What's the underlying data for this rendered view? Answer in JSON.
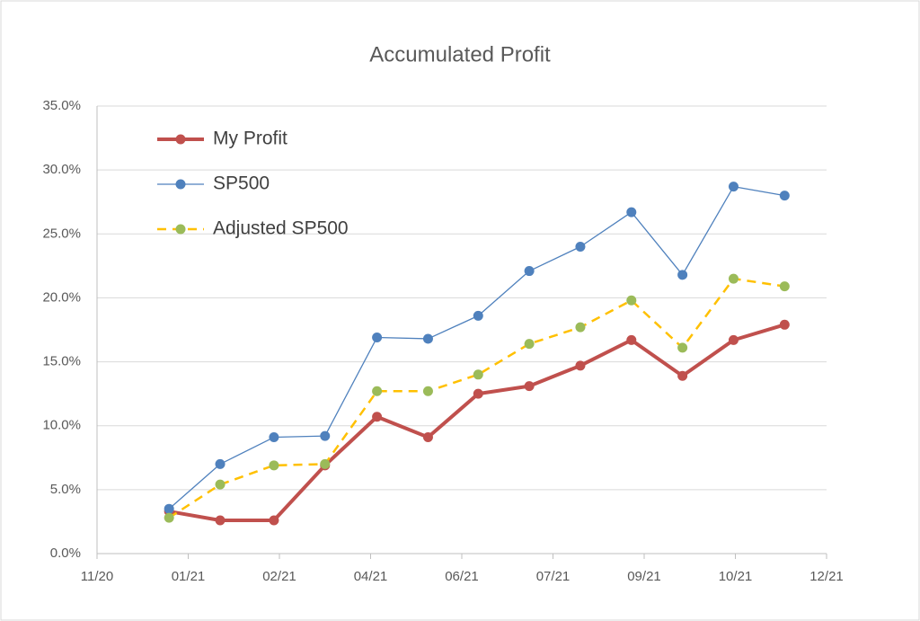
{
  "chart_data": {
    "type": "line",
    "title": "Accumulated Profit",
    "xlim": [
      0,
      8
    ],
    "xticks": [
      {
        "value": 0,
        "label": "11/20"
      },
      {
        "value": 1,
        "label": "01/21"
      },
      {
        "value": 2,
        "label": "02/21"
      },
      {
        "value": 3,
        "label": "04/21"
      },
      {
        "value": 4,
        "label": "06/21"
      },
      {
        "value": 5,
        "label": "07/21"
      },
      {
        "value": 6,
        "label": "09/21"
      },
      {
        "value": 7,
        "label": "10/21"
      },
      {
        "value": 8,
        "label": "12/21"
      }
    ],
    "ylim": [
      0,
      35
    ],
    "yticks": [
      {
        "value": 0,
        "label": "0.0%"
      },
      {
        "value": 5,
        "label": "5.0%"
      },
      {
        "value": 10,
        "label": "10.0%"
      },
      {
        "value": 15,
        "label": "15.0%"
      },
      {
        "value": 20,
        "label": "20.0%"
      },
      {
        "value": 25,
        "label": "25.0%"
      },
      {
        "value": 30,
        "label": "30.0%"
      },
      {
        "value": 35,
        "label": "35.0%"
      }
    ],
    "grid": true,
    "legend": "top-left",
    "x": [
      0.79,
      1.35,
      1.94,
      2.5,
      3.07,
      3.63,
      4.18,
      4.74,
      5.3,
      5.86,
      6.42,
      6.98,
      7.54
    ],
    "series": [
      {
        "name": "My Profit",
        "color": "#c0504d",
        "marker_color": "#c0504d",
        "width": 4,
        "dash": "solid",
        "values": [
          3.3,
          2.6,
          2.6,
          6.9,
          10.7,
          9.1,
          12.5,
          13.1,
          14.7,
          16.7,
          13.9,
          16.7,
          17.9
        ]
      },
      {
        "name": "SP500",
        "color": "#4f81bd",
        "marker_color": "#4f81bd",
        "width": 1.3,
        "dash": "solid",
        "values": [
          3.5,
          7.0,
          9.1,
          9.2,
          16.9,
          16.8,
          18.6,
          22.1,
          24.0,
          26.7,
          21.8,
          28.7,
          28.0
        ]
      },
      {
        "name": "Adjusted SP500",
        "color": "#ffc000",
        "marker_color": "#9bbb59",
        "width": 2.5,
        "dash": "dashed",
        "values": [
          2.8,
          5.4,
          6.9,
          7.0,
          12.7,
          12.7,
          14.0,
          16.4,
          17.7,
          19.8,
          16.1,
          21.5,
          20.9
        ]
      }
    ]
  }
}
